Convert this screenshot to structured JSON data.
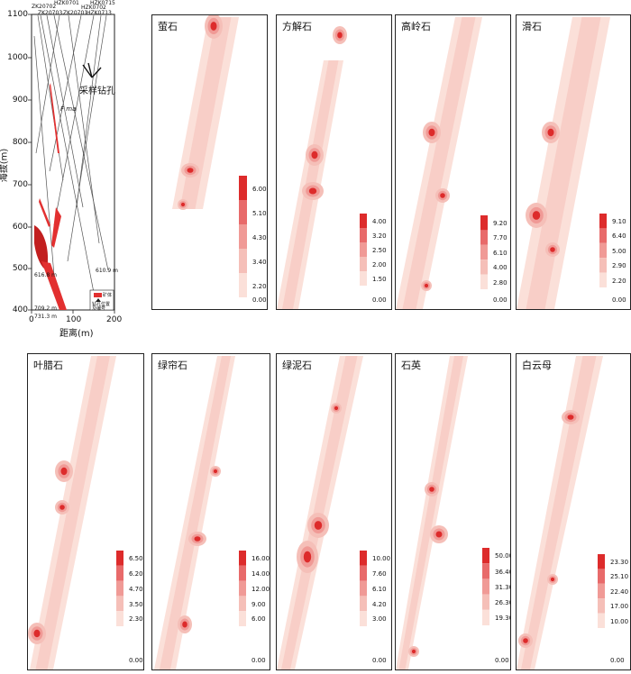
{
  "section": {
    "y_axis_label": "海拔(m)",
    "x_axis_label": "距离(m)",
    "y_ticks": [
      "1100",
      "1000",
      "900",
      "800",
      "700",
      "600",
      "500",
      "400"
    ],
    "x_ticks": [
      "0",
      "100",
      "200"
    ],
    "holes_top": [
      "ZK20702",
      "ZK20703",
      "HZK0701",
      "ZK20701",
      "HZK0702",
      "HZK0715",
      "HZK0713"
    ],
    "annotation": "采样钻孔",
    "fault_label": "F ma",
    "depths": [
      "610.9 m",
      "616.8 m",
      "709.2 m",
      "731.3 m"
    ],
    "legend": {
      "ore": "矿体",
      "hole": "钻孔位置\n及编号"
    }
  },
  "panels": [
    {
      "name": "萤石",
      "ticks": [
        "6.00",
        "5.10",
        "4.30",
        "3.40",
        "2.20",
        "0.00"
      ],
      "colors": [
        "#dd2b2b",
        "#e86a6a",
        "#f09a96",
        "#f5bfb8",
        "#fbe0d9"
      ]
    },
    {
      "name": "方解石",
      "ticks": [
        "4.00",
        "3.20",
        "2.50",
        "2.00",
        "1.50",
        "0.00"
      ],
      "colors": [
        "#dd2b2b",
        "#e86a6a",
        "#f09a96",
        "#f5bfb8",
        "#fbe0d9"
      ]
    },
    {
      "name": "高岭石",
      "ticks": [
        "9.20",
        "7.70",
        "6.10",
        "4.00",
        "2.80",
        "0.00"
      ],
      "colors": [
        "#dd2b2b",
        "#e86a6a",
        "#f09a96",
        "#f5bfb8",
        "#fbe0d9"
      ]
    },
    {
      "name": "滑石",
      "ticks": [
        "9.10",
        "6.40",
        "5.00",
        "2.90",
        "2.20",
        "0.00"
      ],
      "colors": [
        "#dd2b2b",
        "#e86a6a",
        "#f09a96",
        "#f5bfb8",
        "#fbe0d9"
      ]
    },
    {
      "name": "叶腊石",
      "ticks": [
        "6.50",
        "6.20",
        "4.70",
        "3.50",
        "2.30",
        "0.00"
      ],
      "colors": [
        "#dd2b2b",
        "#e86a6a",
        "#f09a96",
        "#f5bfb8",
        "#fbe0d9"
      ]
    },
    {
      "name": "绿帘石",
      "ticks": [
        "16.00",
        "14.00",
        "12.00",
        "9.00",
        "6.00",
        "0.00"
      ],
      "colors": [
        "#dd2b2b",
        "#e86a6a",
        "#f09a96",
        "#f5bfb8",
        "#fbe0d9"
      ]
    },
    {
      "name": "绿泥石",
      "ticks": [
        "10.00",
        "7.60",
        "6.10",
        "4.20",
        "3.00",
        "0.00"
      ],
      "colors": [
        "#dd2b2b",
        "#e86a6a",
        "#f09a96",
        "#f5bfb8",
        "#fbe0d9"
      ]
    },
    {
      "name": "石英",
      "ticks": [
        "50.00",
        "36.40",
        "31.30",
        "26.30",
        "19.30",
        "0.00"
      ],
      "colors": [
        "#dd2b2b",
        "#e86a6a",
        "#f09a96",
        "#f5bfb8",
        "#fbe0d9"
      ]
    },
    {
      "name": "白云母",
      "ticks": [
        "23.30",
        "25.10",
        "22.40",
        "17.00",
        "10.00",
        "0.00"
      ],
      "colors": [
        "#dd2b2b",
        "#e86a6a",
        "#f09a96",
        "#f5bfb8",
        "#fbe0d9"
      ]
    }
  ]
}
